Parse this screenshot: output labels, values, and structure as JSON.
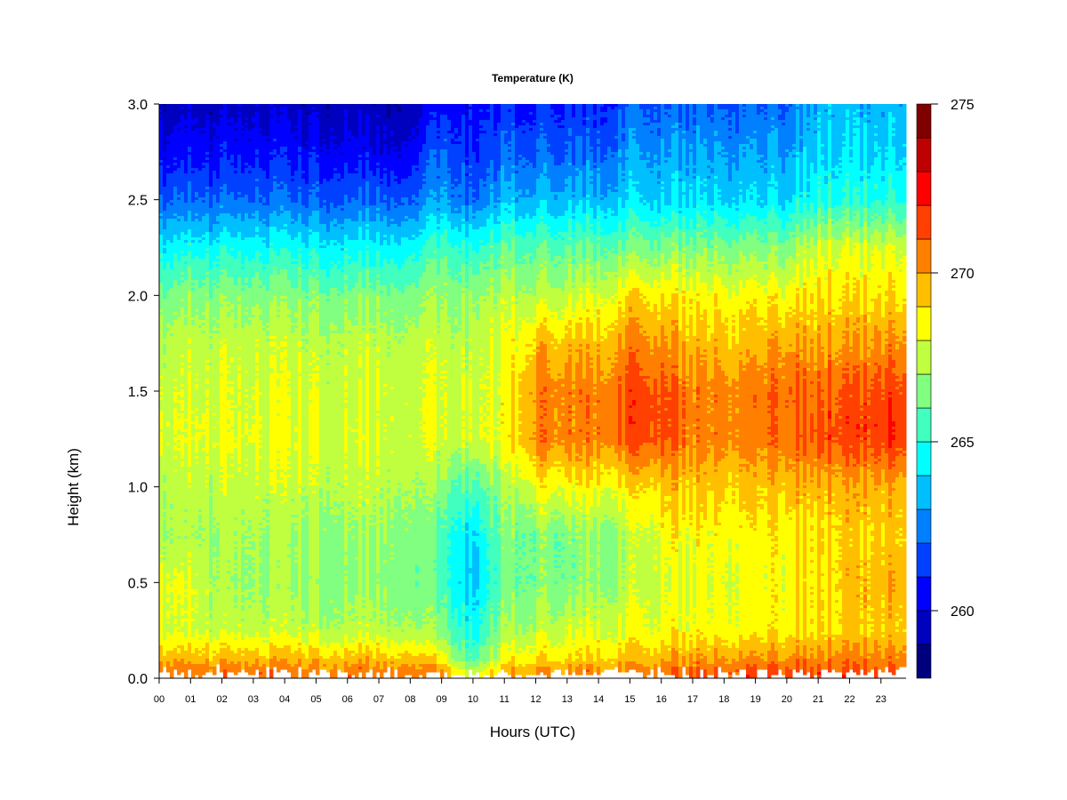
{
  "chart_data": {
    "type": "heatmap",
    "title": "Temperature (K)",
    "xlabel": "Hours (UTC)",
    "ylabel": "Height (km)",
    "xlim": [
      0,
      23.8
    ],
    "ylim": [
      0,
      3.0
    ],
    "x_tick_labels": [
      "00",
      "01",
      "02",
      "03",
      "04",
      "05",
      "06",
      "07",
      "08",
      "09",
      "10",
      "11",
      "12",
      "13",
      "14",
      "15",
      "16",
      "17",
      "18",
      "19",
      "20",
      "21",
      "22",
      "23"
    ],
    "y_tick_labels": [
      "0.0",
      "0.5",
      "1.0",
      "1.5",
      "2.0",
      "2.5",
      "3.0"
    ],
    "colorbar": {
      "levels": [
        258,
        259,
        260,
        261,
        262,
        263,
        264,
        265,
        266,
        267,
        268,
        269,
        270,
        271,
        272,
        273,
        274,
        275
      ],
      "tick_labels": [
        "260",
        "265",
        "270",
        "275"
      ],
      "colors": [
        "#00007F",
        "#0000BF",
        "#0000FF",
        "#0040FF",
        "#0080FF",
        "#00BFFF",
        "#00FFFF",
        "#40FFBF",
        "#80FF80",
        "#BFFF40",
        "#FFFF00",
        "#FFBF00",
        "#FF8000",
        "#FF4000",
        "#FF0000",
        "#BF0000",
        "#800000"
      ]
    },
    "hours": [
      0,
      1,
      2,
      3,
      4,
      5,
      6,
      7,
      8,
      9,
      10,
      11,
      12,
      13,
      14,
      15,
      16,
      17,
      18,
      19,
      20,
      21,
      22,
      23
    ],
    "heights_km": [
      0,
      0.1,
      0.25,
      0.5,
      0.75,
      1.0,
      1.25,
      1.5,
      1.75,
      2.0,
      2.25,
      2.5,
      2.75,
      3.0
    ],
    "temperature_K": [
      [
        271.5,
        271.3,
        271.3,
        271.3,
        271.3,
        271.3,
        271.3,
        271.3,
        271.3,
        271.0,
        268.5,
        270.5,
        271.0,
        271.0,
        271.2,
        271.3,
        271.5,
        271.8,
        271.8,
        272.0,
        272.0,
        272.0,
        272.0,
        272.0
      ],
      [
        269.8,
        269.5,
        269.5,
        269.5,
        269.5,
        269.5,
        269.5,
        269.5,
        269.5,
        268.5,
        265.5,
        268.5,
        269.0,
        269.0,
        269.2,
        269.5,
        269.8,
        270.0,
        270.0,
        270.2,
        270.2,
        270.5,
        270.5,
        270.5
      ],
      [
        268.0,
        267.8,
        267.5,
        267.5,
        267.5,
        267.5,
        267.5,
        267.5,
        267.3,
        266.5,
        264.5,
        267.0,
        267.5,
        267.8,
        268.0,
        268.3,
        268.5,
        268.5,
        268.5,
        268.5,
        268.7,
        269.0,
        269.3,
        269.3
      ],
      [
        268.3,
        268.0,
        267.0,
        266.8,
        266.8,
        266.8,
        266.8,
        266.8,
        266.5,
        265.5,
        263.5,
        266.3,
        266.5,
        266.5,
        266.8,
        267.5,
        268.0,
        268.0,
        268.2,
        268.3,
        268.5,
        269.0,
        269.5,
        269.8
      ],
      [
        267.3,
        267.0,
        267.0,
        267.0,
        267.0,
        267.0,
        267.0,
        267.0,
        266.8,
        265.5,
        264.0,
        266.5,
        266.5,
        266.5,
        266.8,
        267.5,
        268.5,
        268.5,
        268.5,
        268.5,
        268.7,
        269.0,
        269.3,
        269.3
      ],
      [
        267.5,
        267.5,
        267.5,
        267.5,
        267.5,
        267.5,
        267.5,
        267.5,
        267.3,
        266.5,
        265.5,
        267.0,
        268.5,
        268.5,
        268.5,
        268.8,
        269.5,
        269.3,
        269.3,
        269.3,
        269.5,
        269.7,
        269.8,
        269.8
      ],
      [
        268.0,
        268.0,
        268.0,
        268.0,
        268.0,
        268.0,
        268.0,
        268.0,
        268.0,
        267.8,
        267.8,
        268.5,
        270.5,
        270.5,
        270.5,
        271.5,
        271.5,
        270.5,
        270.5,
        270.5,
        270.8,
        271.5,
        271.5,
        271.8
      ],
      [
        267.8,
        267.8,
        267.8,
        267.8,
        267.8,
        267.8,
        267.8,
        267.8,
        267.8,
        267.8,
        267.8,
        268.3,
        270.5,
        270.5,
        270.5,
        271.5,
        271.5,
        270.5,
        270.5,
        270.5,
        271.0,
        271.0,
        271.3,
        271.5
      ],
      [
        267.5,
        267.5,
        267.5,
        267.5,
        267.5,
        267.5,
        267.5,
        267.5,
        267.5,
        267.5,
        267.5,
        268.0,
        269.5,
        269.5,
        269.5,
        270.5,
        270.3,
        269.5,
        269.5,
        269.5,
        270.0,
        270.0,
        270.0,
        270.3
      ],
      [
        266.5,
        266.5,
        266.5,
        266.5,
        266.5,
        266.5,
        266.5,
        266.5,
        266.5,
        266.8,
        266.8,
        267.5,
        267.5,
        267.5,
        268.0,
        269.0,
        269.0,
        268.5,
        268.5,
        268.5,
        268.5,
        269.0,
        269.0,
        269.0
      ],
      [
        264.5,
        264.5,
        264.5,
        264.5,
        264.5,
        264.5,
        264.5,
        264.5,
        264.5,
        265.5,
        265.0,
        266.0,
        266.0,
        266.0,
        266.0,
        266.5,
        266.5,
        266.5,
        266.5,
        266.5,
        266.5,
        268.0,
        268.0,
        268.0
      ],
      [
        262.0,
        262.0,
        262.0,
        262.0,
        262.0,
        262.0,
        262.0,
        262.0,
        262.0,
        263.0,
        262.0,
        263.5,
        263.5,
        263.5,
        263.5,
        264.0,
        264.0,
        264.0,
        264.0,
        264.0,
        264.0,
        265.0,
        265.0,
        265.0
      ],
      [
        260.5,
        260.5,
        260.5,
        260.5,
        260.5,
        260.5,
        260.5,
        260.3,
        260.3,
        262.0,
        261.0,
        262.0,
        262.0,
        262.0,
        262.0,
        263.0,
        263.0,
        263.0,
        263.0,
        263.0,
        263.0,
        264.0,
        264.0,
        264.0
      ],
      [
        259.5,
        259.5,
        259.5,
        259.5,
        259.5,
        259.5,
        259.5,
        259.3,
        259.3,
        260.5,
        260.5,
        261.0,
        261.0,
        261.0,
        261.0,
        262.0,
        262.0,
        262.0,
        262.0,
        262.0,
        262.0,
        263.5,
        263.5,
        263.5
      ]
    ]
  }
}
